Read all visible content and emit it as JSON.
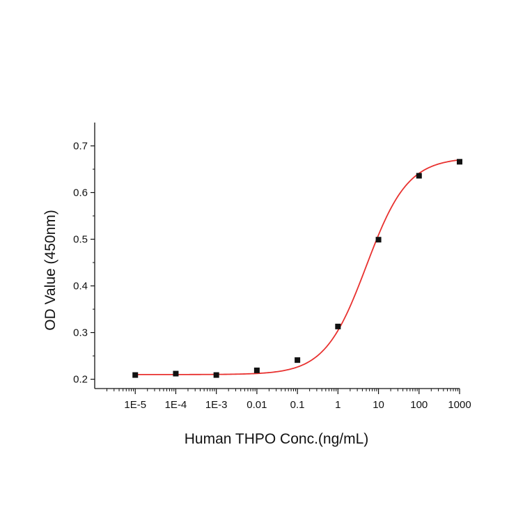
{
  "chart_data": {
    "type": "scatter",
    "title": "",
    "xlabel": "Human THPO Conc.(ng/mL)",
    "ylabel": "OD Value (450nm)",
    "x_scale": "log",
    "xlim": [
      1e-06,
      1000
    ],
    "ylim": [
      0.18,
      0.75
    ],
    "grid": false,
    "legend": "none",
    "x_ticks": [
      {
        "value": 1e-05,
        "label": "1E-5"
      },
      {
        "value": 0.0001,
        "label": "1E-4"
      },
      {
        "value": 0.001,
        "label": "1E-3"
      },
      {
        "value": 0.01,
        "label": "0.01"
      },
      {
        "value": 0.1,
        "label": "0.1"
      },
      {
        "value": 1,
        "label": "1"
      },
      {
        "value": 10,
        "label": "10"
      },
      {
        "value": 100,
        "label": "100"
      },
      {
        "value": 1000,
        "label": "1000"
      }
    ],
    "y_ticks": [
      {
        "value": 0.2,
        "label": "0.2"
      },
      {
        "value": 0.3,
        "label": "0.3"
      },
      {
        "value": 0.4,
        "label": "0.4"
      },
      {
        "value": 0.5,
        "label": "0.5"
      },
      {
        "value": 0.6,
        "label": "0.6"
      },
      {
        "value": 0.7,
        "label": "0.7"
      }
    ],
    "series": [
      {
        "x": [
          1e-05,
          0.0001,
          0.001,
          0.01,
          0.1,
          1,
          10,
          100,
          1000
        ],
        "y": [
          0.209,
          0.212,
          0.209,
          0.219,
          0.241,
          0.313,
          0.499,
          0.636,
          0.666
        ]
      }
    ],
    "fit_curve": {
      "type": "4PL",
      "bottom": 0.21,
      "top": 0.675,
      "ec50": 5.0,
      "hill": 0.85
    },
    "colors": {
      "points": "#111111",
      "fit_line": "#e8312f",
      "axes": "#111111"
    }
  }
}
